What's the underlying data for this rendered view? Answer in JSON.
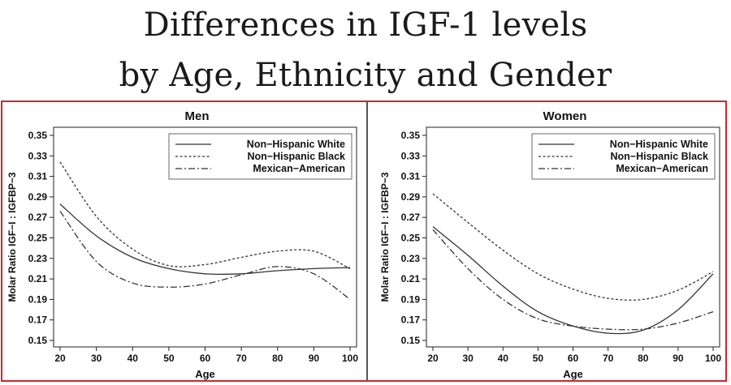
{
  "title": {
    "line1": "Differences in IGF-1 levels",
    "line2": "by Age, Ethnicity and Gender"
  },
  "chart_data": [
    {
      "type": "line",
      "title": "Men",
      "xlabel": "Age",
      "ylabel": "Molar Ratio IGF−I : IGFBP−3",
      "xlim": [
        20,
        100
      ],
      "ylim": [
        0.15,
        0.35
      ],
      "xticks": [
        20,
        30,
        40,
        50,
        60,
        70,
        80,
        90,
        100
      ],
      "yticks": [
        0.15,
        0.17,
        0.19,
        0.21,
        0.23,
        0.25,
        0.27,
        0.29,
        0.31,
        0.33,
        0.35
      ],
      "legend_position": "top-right",
      "x": [
        20,
        30,
        40,
        50,
        60,
        70,
        80,
        90,
        100
      ],
      "series": [
        {
          "name": "Non−Hispanic White",
          "style": "solid",
          "values": [
            0.283,
            0.252,
            0.231,
            0.22,
            0.215,
            0.215,
            0.218,
            0.22,
            0.221
          ]
        },
        {
          "name": "Non−Hispanic Black",
          "style": "dashed",
          "values": [
            0.324,
            0.271,
            0.239,
            0.223,
            0.224,
            0.231,
            0.237,
            0.237,
            0.22
          ]
        },
        {
          "name": "Mexican−American",
          "style": "dashdot",
          "values": [
            0.276,
            0.227,
            0.206,
            0.202,
            0.205,
            0.214,
            0.222,
            0.215,
            0.19
          ]
        }
      ]
    },
    {
      "type": "line",
      "title": "Women",
      "xlabel": "Age",
      "ylabel": "Molar Ratio IGF−I : IGFBP−3",
      "xlim": [
        20,
        100
      ],
      "ylim": [
        0.15,
        0.35
      ],
      "xticks": [
        20,
        30,
        40,
        50,
        60,
        70,
        80,
        90,
        100
      ],
      "yticks": [
        0.15,
        0.17,
        0.19,
        0.21,
        0.23,
        0.25,
        0.27,
        0.29,
        0.31,
        0.33,
        0.35
      ],
      "legend_position": "top-right",
      "x": [
        20,
        30,
        40,
        50,
        60,
        70,
        80,
        90,
        100
      ],
      "series": [
        {
          "name": "Non−Hispanic White",
          "style": "solid",
          "values": [
            0.261,
            0.233,
            0.203,
            0.178,
            0.164,
            0.157,
            0.16,
            0.18,
            0.215
          ]
        },
        {
          "name": "Non−Hispanic Black",
          "style": "dashed",
          "values": [
            0.293,
            0.265,
            0.238,
            0.215,
            0.2,
            0.191,
            0.19,
            0.199,
            0.217
          ]
        },
        {
          "name": "Mexican−American",
          "style": "dashdot",
          "values": [
            0.258,
            0.22,
            0.19,
            0.171,
            0.164,
            0.161,
            0.161,
            0.167,
            0.178
          ]
        }
      ]
    }
  ]
}
